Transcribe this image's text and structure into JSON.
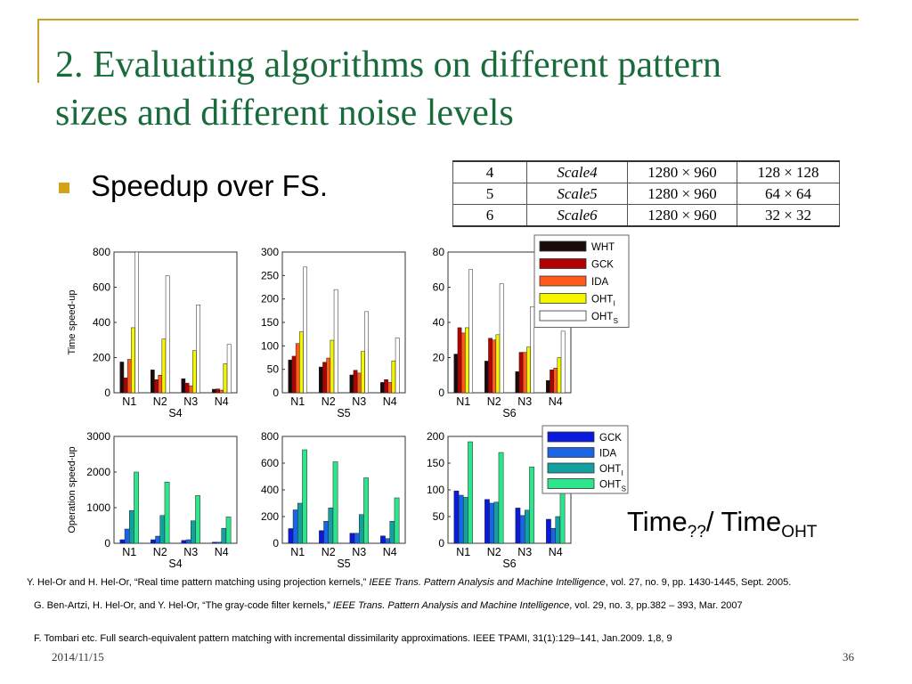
{
  "slide": {
    "title": "2. Evaluating algorithms on different pattern sizes and different noise levels",
    "bullet": "Speedup over FS.",
    "formula": {
      "time": "Time",
      "sub1": "??",
      "slash": "/ Time",
      "sub2": "OHT"
    },
    "date": "2014/11/15",
    "page": "36"
  },
  "scale_table": [
    [
      "4",
      "Scale4",
      "1280 × 960",
      "128 × 128"
    ],
    [
      "5",
      "Scale5",
      "1280 × 960",
      "64 × 64"
    ],
    [
      "6",
      "Scale6",
      "1280 × 960",
      "32 × 32"
    ]
  ],
  "references": [
    {
      "pre": "Y. Hel-Or and H. Hel-Or, “Real time pattern matching using projection kernels,” ",
      "journal": "IEEE Trans. Pattern Analysis and Machine Intelligence",
      "post": ", vol. 27, no. 9, pp. 1430-1445, Sept. 2005."
    },
    {
      "pre": "G. Ben-Artzi, H. Hel-Or, and Y. Hel-Or, “The gray-code filter kernels,” ",
      "journal": "IEEE Trans. Pattern Analysis and Machine Intelligence",
      "post": ", vol. 29, no. 3,  pp.382 – 393, Mar. 2007"
    },
    {
      "pre": "F. Tombari etc. Full search-equivalent pattern matching with incremental dissimilarity approximations. IEEE TPAMI, 31(1):129–141, Jan.2009. 1,8, 9",
      "journal": "",
      "post": ""
    }
  ],
  "legend_time": [
    {
      "label": "WHT",
      "sub": "",
      "color": "#1a0a0a"
    },
    {
      "label": "GCK",
      "sub": "",
      "color": "#b30000"
    },
    {
      "label": "IDA",
      "sub": "",
      "color": "#ff5a1a"
    },
    {
      "label": "OHT",
      "sub": "I",
      "color": "#f5f500"
    },
    {
      "label": "OHT",
      "sub": "S",
      "color": "#ffffff"
    }
  ],
  "legend_op": [
    {
      "label": "GCK",
      "sub": "",
      "color": "#0a1adc"
    },
    {
      "label": "IDA",
      "sub": "",
      "color": "#1a64e6"
    },
    {
      "label": "OHT",
      "sub": "I",
      "color": "#14a0a0"
    },
    {
      "label": "OHT",
      "sub": "S",
      "color": "#2de68c"
    }
  ],
  "chart_data": [
    {
      "type": "bar",
      "xlabel": "S4",
      "ylabel": "Time speed-up",
      "ylim": [
        0,
        800
      ],
      "yticks": [
        0,
        200,
        400,
        600,
        800
      ],
      "categories": [
        "N1",
        "N2",
        "N3",
        "N4"
      ],
      "series": [
        {
          "name": "WHT",
          "values": [
            175,
            130,
            80,
            20
          ]
        },
        {
          "name": "GCK",
          "values": [
            85,
            75,
            55,
            22
          ]
        },
        {
          "name": "IDA",
          "values": [
            190,
            100,
            40,
            15
          ]
        },
        {
          "name": "OHT_I",
          "values": [
            370,
            305,
            240,
            165
          ]
        },
        {
          "name": "OHT_S",
          "values": [
            800,
            665,
            500,
            275
          ]
        }
      ]
    },
    {
      "type": "bar",
      "xlabel": "S5",
      "ylabel": "",
      "ylim": [
        0,
        300
      ],
      "yticks": [
        0,
        50,
        100,
        150,
        200,
        250,
        300
      ],
      "categories": [
        "N1",
        "N2",
        "N3",
        "N4"
      ],
      "series": [
        {
          "name": "WHT",
          "values": [
            70,
            55,
            38,
            22
          ]
        },
        {
          "name": "GCK",
          "values": [
            78,
            65,
            48,
            28
          ]
        },
        {
          "name": "IDA",
          "values": [
            105,
            74,
            42,
            22
          ]
        },
        {
          "name": "OHT_I",
          "values": [
            130,
            112,
            88,
            68
          ]
        },
        {
          "name": "OHT_S",
          "values": [
            268,
            220,
            173,
            117
          ]
        }
      ]
    },
    {
      "type": "bar",
      "xlabel": "S6",
      "ylabel": "",
      "ylim": [
        0,
        80
      ],
      "yticks": [
        0,
        20,
        40,
        60,
        80
      ],
      "categories": [
        "N1",
        "N2",
        "N3",
        "N4"
      ],
      "series": [
        {
          "name": "WHT",
          "values": [
            22,
            18,
            12,
            7
          ]
        },
        {
          "name": "GCK",
          "values": [
            37,
            31,
            23,
            13
          ]
        },
        {
          "name": "IDA",
          "values": [
            34,
            30,
            23,
            14
          ]
        },
        {
          "name": "OHT_I",
          "values": [
            37,
            33,
            26,
            20
          ]
        },
        {
          "name": "OHT_S",
          "values": [
            70,
            62,
            49,
            35
          ]
        }
      ]
    },
    {
      "type": "bar",
      "xlabel": "S4",
      "ylabel": "Operation speed-up",
      "ylim": [
        0,
        3000
      ],
      "yticks": [
        0,
        1000,
        2000,
        3000
      ],
      "categories": [
        "N1",
        "N2",
        "N3",
        "N4"
      ],
      "series": [
        {
          "name": "GCK",
          "values": [
            100,
            100,
            80,
            30
          ]
        },
        {
          "name": "IDA",
          "values": [
            400,
            200,
            100,
            30
          ]
        },
        {
          "name": "OHT_I",
          "values": [
            920,
            780,
            630,
            420
          ]
        },
        {
          "name": "OHT_S",
          "values": [
            2000,
            1720,
            1340,
            740
          ]
        }
      ]
    },
    {
      "type": "bar",
      "xlabel": "S5",
      "ylabel": "",
      "ylim": [
        0,
        800
      ],
      "yticks": [
        0,
        200,
        400,
        600,
        800
      ],
      "categories": [
        "N1",
        "N2",
        "N3",
        "N4"
      ],
      "series": [
        {
          "name": "GCK",
          "values": [
            110,
            95,
            75,
            55
          ]
        },
        {
          "name": "IDA",
          "values": [
            250,
            165,
            75,
            35
          ]
        },
        {
          "name": "OHT_I",
          "values": [
            300,
            265,
            215,
            165
          ]
        },
        {
          "name": "OHT_S",
          "values": [
            700,
            610,
            490,
            340
          ]
        }
      ]
    },
    {
      "type": "bar",
      "xlabel": "S6",
      "ylabel": "",
      "ylim": [
        0,
        200
      ],
      "yticks": [
        0,
        50,
        100,
        150,
        200
      ],
      "categories": [
        "N1",
        "N2",
        "N3",
        "N4"
      ],
      "series": [
        {
          "name": "GCK",
          "values": [
            98,
            82,
            66,
            45
          ]
        },
        {
          "name": "IDA",
          "values": [
            90,
            75,
            52,
            28
          ]
        },
        {
          "name": "OHT_I",
          "values": [
            86,
            77,
            62,
            50
          ]
        },
        {
          "name": "OHT_S",
          "values": [
            190,
            170,
            143,
            107
          ]
        }
      ]
    }
  ]
}
